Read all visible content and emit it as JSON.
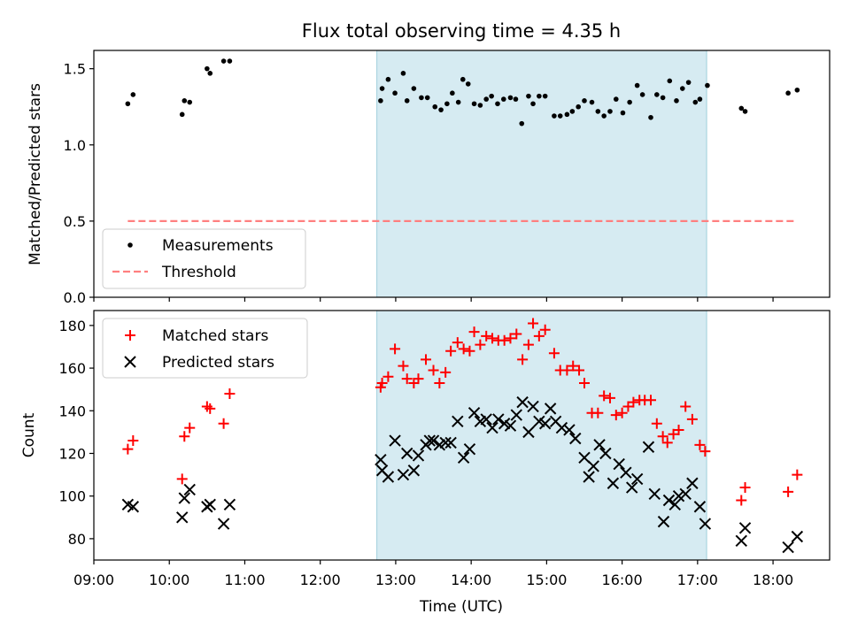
{
  "chart_data": {
    "type": "scatter",
    "title": "Flux total observing time = 4.35 h",
    "xlabel": "Time (UTC)",
    "x_unit": "hours UTC",
    "x_ticks": [
      {
        "x": 9,
        "label": "09:00"
      },
      {
        "x": 10,
        "label": "10:00"
      },
      {
        "x": 11,
        "label": "11:00"
      },
      {
        "x": 12,
        "label": "12:00"
      },
      {
        "x": 13,
        "label": "13:00"
      },
      {
        "x": 14,
        "label": "14:00"
      },
      {
        "x": 15,
        "label": "15:00"
      },
      {
        "x": 16,
        "label": "16:00"
      },
      {
        "x": 17,
        "label": "17:00"
      },
      {
        "x": 18,
        "label": "18:00"
      }
    ],
    "xlim": [
      9.0,
      18.75
    ],
    "shaded_interval": {
      "x_start": 12.75,
      "x_end": 17.12,
      "color": "#add8e6"
    },
    "panels": [
      {
        "ylabel": "Matched/Predicted stars",
        "ylim": [
          0,
          1.62
        ],
        "y_ticks": [
          {
            "y": 0,
            "label": "0.0"
          },
          {
            "y": 0.5,
            "label": "0.5"
          },
          {
            "y": 1.0,
            "label": "1.0"
          },
          {
            "y": 1.5,
            "label": "1.5"
          }
        ],
        "legend": {
          "position": "lower-left",
          "entries": [
            "Measurements",
            "Threshold"
          ]
        },
        "series": [
          {
            "name": "Measurements",
            "marker": "dot",
            "color": "#000000",
            "points": [
              [
                9.45,
                1.27
              ],
              [
                9.52,
                1.33
              ],
              [
                10.17,
                1.2
              ],
              [
                10.2,
                1.29
              ],
              [
                10.27,
                1.28
              ],
              [
                10.5,
                1.5
              ],
              [
                10.54,
                1.47
              ],
              [
                10.72,
                1.55
              ],
              [
                10.8,
                1.55
              ],
              [
                12.8,
                1.29
              ],
              [
                12.82,
                1.37
              ],
              [
                12.9,
                1.43
              ],
              [
                12.99,
                1.34
              ],
              [
                13.1,
                1.47
              ],
              [
                13.15,
                1.29
              ],
              [
                13.24,
                1.37
              ],
              [
                13.34,
                1.31
              ],
              [
                13.42,
                1.31
              ],
              [
                13.52,
                1.25
              ],
              [
                13.6,
                1.23
              ],
              [
                13.68,
                1.27
              ],
              [
                13.75,
                1.34
              ],
              [
                13.83,
                1.28
              ],
              [
                13.89,
                1.43
              ],
              [
                13.96,
                1.4
              ],
              [
                14.04,
                1.27
              ],
              [
                14.12,
                1.26
              ],
              [
                14.2,
                1.3
              ],
              [
                14.27,
                1.32
              ],
              [
                14.35,
                1.27
              ],
              [
                14.43,
                1.3
              ],
              [
                14.52,
                1.31
              ],
              [
                14.59,
                1.3
              ],
              [
                14.67,
                1.14
              ],
              [
                14.76,
                1.32
              ],
              [
                14.82,
                1.27
              ],
              [
                14.9,
                1.32
              ],
              [
                14.98,
                1.32
              ],
              [
                15.1,
                1.19
              ],
              [
                15.18,
                1.19
              ],
              [
                15.27,
                1.2
              ],
              [
                15.34,
                1.22
              ],
              [
                15.42,
                1.25
              ],
              [
                15.5,
                1.29
              ],
              [
                15.6,
                1.28
              ],
              [
                15.68,
                1.22
              ],
              [
                15.76,
                1.19
              ],
              [
                15.84,
                1.22
              ],
              [
                15.92,
                1.3
              ],
              [
                16.01,
                1.21
              ],
              [
                16.1,
                1.28
              ],
              [
                16.2,
                1.39
              ],
              [
                16.27,
                1.33
              ],
              [
                16.38,
                1.18
              ],
              [
                16.46,
                1.33
              ],
              [
                16.54,
                1.31
              ],
              [
                16.63,
                1.42
              ],
              [
                16.72,
                1.29
              ],
              [
                16.8,
                1.37
              ],
              [
                16.88,
                1.41
              ],
              [
                16.97,
                1.28
              ],
              [
                17.03,
                1.3
              ],
              [
                17.13,
                1.39
              ],
              [
                17.58,
                1.24
              ],
              [
                17.63,
                1.22
              ],
              [
                18.2,
                1.34
              ],
              [
                18.32,
                1.36
              ]
            ]
          },
          {
            "name": "Threshold",
            "marker": "dashed-line",
            "color": "#ff7f7f",
            "points": [
              [
                9.45,
                0.5
              ],
              [
                18.32,
                0.5
              ]
            ]
          }
        ]
      },
      {
        "ylabel": "Count",
        "ylim": [
          70,
          187
        ],
        "y_ticks": [
          {
            "y": 80,
            "label": "80"
          },
          {
            "y": 100,
            "label": "100"
          },
          {
            "y": 120,
            "label": "120"
          },
          {
            "y": 140,
            "label": "140"
          },
          {
            "y": 160,
            "label": "160"
          },
          {
            "y": 180,
            "label": "180"
          }
        ],
        "legend": {
          "position": "top-left",
          "entries": [
            "Matched stars",
            "Predicted stars"
          ]
        },
        "series": [
          {
            "name": "Matched stars",
            "marker": "plus",
            "color": "#ff0000",
            "points": [
              [
                9.45,
                122
              ],
              [
                9.52,
                126
              ],
              [
                10.17,
                108
              ],
              [
                10.2,
                128
              ],
              [
                10.27,
                132
              ],
              [
                10.5,
                142
              ],
              [
                10.54,
                141
              ],
              [
                10.72,
                134
              ],
              [
                10.8,
                148
              ],
              [
                12.8,
                151
              ],
              [
                12.82,
                153
              ],
              [
                12.9,
                156
              ],
              [
                12.99,
                169
              ],
              [
                13.1,
                161
              ],
              [
                13.15,
                155
              ],
              [
                13.24,
                153
              ],
              [
                13.3,
                155
              ],
              [
                13.4,
                164
              ],
              [
                13.5,
                159
              ],
              [
                13.58,
                153
              ],
              [
                13.66,
                158
              ],
              [
                13.73,
                168
              ],
              [
                13.82,
                172
              ],
              [
                13.9,
                169
              ],
              [
                13.98,
                168
              ],
              [
                14.04,
                177
              ],
              [
                14.12,
                171
              ],
              [
                14.2,
                175
              ],
              [
                14.28,
                174
              ],
              [
                14.36,
                173
              ],
              [
                14.44,
                173
              ],
              [
                14.52,
                174
              ],
              [
                14.6,
                176
              ],
              [
                14.68,
                164
              ],
              [
                14.76,
                171
              ],
              [
                14.82,
                181
              ],
              [
                14.9,
                175
              ],
              [
                14.98,
                178
              ],
              [
                15.1,
                167
              ],
              [
                15.18,
                159
              ],
              [
                15.27,
                159
              ],
              [
                15.35,
                161
              ],
              [
                15.43,
                159
              ],
              [
                15.5,
                153
              ],
              [
                15.6,
                139
              ],
              [
                15.68,
                139
              ],
              [
                15.76,
                147
              ],
              [
                15.84,
                146
              ],
              [
                15.92,
                138
              ],
              [
                16.0,
                139
              ],
              [
                16.08,
                142
              ],
              [
                16.15,
                144
              ],
              [
                16.23,
                145
              ],
              [
                16.3,
                145
              ],
              [
                16.38,
                145
              ],
              [
                16.46,
                134
              ],
              [
                16.54,
                128
              ],
              [
                16.6,
                125
              ],
              [
                16.68,
                129
              ],
              [
                16.75,
                131
              ],
              [
                16.84,
                142
              ],
              [
                16.93,
                136
              ],
              [
                17.03,
                124
              ],
              [
                17.1,
                121
              ],
              [
                17.58,
                98
              ],
              [
                17.63,
                104
              ],
              [
                18.2,
                102
              ],
              [
                18.32,
                110
              ]
            ]
          },
          {
            "name": "Predicted stars",
            "marker": "x",
            "color": "#000000",
            "points": [
              [
                9.45,
                96
              ],
              [
                9.52,
                95
              ],
              [
                10.17,
                90
              ],
              [
                10.2,
                99
              ],
              [
                10.27,
                103
              ],
              [
                10.5,
                95
              ],
              [
                10.54,
                96
              ],
              [
                10.72,
                87
              ],
              [
                10.8,
                96
              ],
              [
                12.8,
                117
              ],
              [
                12.82,
                112
              ],
              [
                12.9,
                109
              ],
              [
                12.99,
                126
              ],
              [
                13.1,
                110
              ],
              [
                13.15,
                120
              ],
              [
                13.24,
                112
              ],
              [
                13.3,
                119
              ],
              [
                13.4,
                124
              ],
              [
                13.45,
                126
              ],
              [
                13.5,
                126
              ],
              [
                13.58,
                124
              ],
              [
                13.66,
                125
              ],
              [
                13.73,
                125
              ],
              [
                13.82,
                135
              ],
              [
                13.9,
                118
              ],
              [
                13.98,
                122
              ],
              [
                14.04,
                139
              ],
              [
                14.12,
                135
              ],
              [
                14.2,
                136
              ],
              [
                14.28,
                132
              ],
              [
                14.36,
                136
              ],
              [
                14.44,
                134
              ],
              [
                14.52,
                133
              ],
              [
                14.6,
                138
              ],
              [
                14.68,
                144
              ],
              [
                14.76,
                130
              ],
              [
                14.82,
                142
              ],
              [
                14.9,
                135
              ],
              [
                14.98,
                134
              ],
              [
                15.05,
                141
              ],
              [
                15.12,
                135
              ],
              [
                15.2,
                132
              ],
              [
                15.3,
                131
              ],
              [
                15.38,
                127
              ],
              [
                15.5,
                118
              ],
              [
                15.56,
                109
              ],
              [
                15.62,
                114
              ],
              [
                15.7,
                124
              ],
              [
                15.78,
                120
              ],
              [
                15.88,
                106
              ],
              [
                15.96,
                115
              ],
              [
                16.05,
                111
              ],
              [
                16.13,
                104
              ],
              [
                16.2,
                108
              ],
              [
                16.35,
                123
              ],
              [
                16.43,
                101
              ],
              [
                16.55,
                88
              ],
              [
                16.62,
                98
              ],
              [
                16.7,
                96
              ],
              [
                16.75,
                100
              ],
              [
                16.84,
                101
              ],
              [
                16.93,
                106
              ],
              [
                17.03,
                95
              ],
              [
                17.1,
                87
              ],
              [
                17.58,
                79
              ],
              [
                17.63,
                85
              ],
              [
                18.2,
                76
              ],
              [
                18.32,
                81
              ]
            ]
          }
        ]
      }
    ]
  }
}
